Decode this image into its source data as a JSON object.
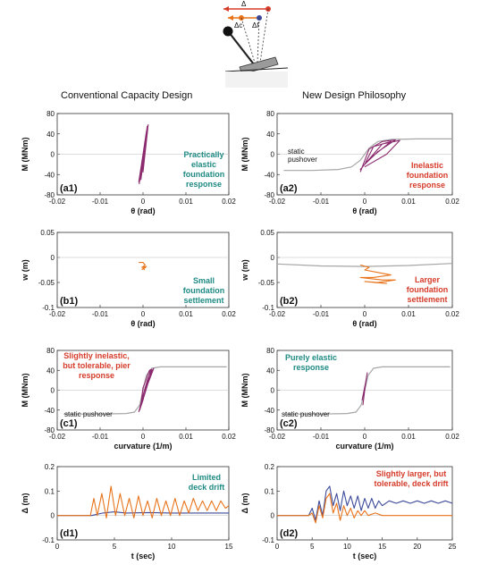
{
  "header": {
    "left_title": "Conventional Capacity Design",
    "right_title": "New Design Philosophy",
    "schematic": {
      "delta": "Δ",
      "delta_c": "Δc",
      "delta_f": "Δf"
    }
  },
  "colors": {
    "purple": "#8b2a6e",
    "orange": "#e8731a",
    "gray": "#a6a6a6",
    "teal": "#1f8a84",
    "red": "#d63b2a",
    "navy": "#3b4a9a"
  },
  "chart_data": [
    {
      "id": "a1",
      "type": "line",
      "panel_label": "(a1)",
      "xlabel": "θ (rad)",
      "ylabel": "M (MNm)",
      "xlim": [
        -0.02,
        0.02
      ],
      "ylim": [
        -80,
        80
      ],
      "xticks": [
        "-0.02",
        "-0.01",
        "0",
        "0.01",
        "0.02"
      ],
      "yticks": [
        "80",
        "40",
        "0",
        "-40",
        "-80"
      ],
      "annotations": [
        {
          "text": "Practically\nelastic\nfoundation\nresponse",
          "color": "teal"
        }
      ],
      "series": [
        {
          "color": "purple",
          "x": [
            -0.001,
            0.001,
            -0.0005,
            0.0012,
            -0.0008,
            0.0008,
            0.0,
            0.0011,
            -0.0009,
            0.0004
          ],
          "y": [
            -55,
            55,
            -50,
            58,
            -45,
            45,
            -35,
            50,
            -58,
            20
          ]
        }
      ]
    },
    {
      "id": "a2",
      "type": "line",
      "panel_label": "(a2)",
      "xlabel": "θ (rad)",
      "ylabel": "M (MNm)",
      "xlim": [
        -0.02,
        0.02
      ],
      "ylim": [
        -80,
        80
      ],
      "xticks": [
        "-0.02",
        "-0.01",
        "0",
        "0.01",
        "0.02"
      ],
      "yticks": [
        "80",
        "40",
        "0",
        "-40",
        "-80"
      ],
      "annotations": [
        {
          "text": "static\npushover",
          "color": "black"
        },
        {
          "text": "Inelastic\nfoundation\nresponse",
          "color": "red"
        }
      ],
      "series": [
        {
          "name": "static pushover",
          "color": "gray",
          "x": [
            -0.0185,
            -0.012,
            -0.006,
            -0.003,
            -0.001,
            0.0,
            0.001,
            0.003,
            0.006,
            0.012,
            0.02
          ],
          "y": [
            -32,
            -32,
            -30,
            -25,
            -12,
            0,
            12,
            25,
            29,
            30,
            30
          ]
        },
        {
          "color": "purple",
          "x": [
            -0.001,
            0.001,
            0.004,
            0.007,
            0.003,
            0.0,
            0.002,
            0.006,
            0.001,
            -0.001,
            0.004,
            0.008,
            0.005,
            0.0
          ],
          "y": [
            -35,
            10,
            25,
            28,
            5,
            -20,
            15,
            25,
            -10,
            -30,
            20,
            27,
            0,
            -25
          ]
        }
      ]
    },
    {
      "id": "b1",
      "type": "line",
      "panel_label": "(b1)",
      "xlabel": "θ (rad)",
      "ylabel": "w (m)",
      "xlim": [
        -0.02,
        0.02
      ],
      "ylim": [
        -0.1,
        0.05
      ],
      "xticks": [
        "-0.02",
        "-0.01",
        "0",
        "0.01",
        "0.02"
      ],
      "yticks": [
        "0.05",
        "0",
        "-0.05",
        "-0.1"
      ],
      "annotations": [
        {
          "text": "Small\nfoundation\nsettlement",
          "color": "teal"
        }
      ],
      "series": [
        {
          "color": "orange",
          "x": [
            -0.001,
            0.0,
            0.0005,
            -0.0003,
            0.0008,
            -0.0002,
            0.0006,
            0.0,
            0.0004
          ],
          "y": [
            -0.01,
            -0.01,
            -0.015,
            -0.02,
            -0.018,
            -0.024,
            -0.02,
            -0.022,
            -0.025
          ]
        }
      ]
    },
    {
      "id": "b2",
      "type": "line",
      "panel_label": "(b2)",
      "xlabel": "θ (rad)",
      "ylabel": "w (m)",
      "xlim": [
        -0.02,
        0.02
      ],
      "ylim": [
        -0.1,
        0.05
      ],
      "xticks": [
        "-0.02",
        "-0.01",
        "0",
        "0.01",
        "0.02"
      ],
      "yticks": [
        "0.05",
        "0",
        "-0.05",
        "-0.1"
      ],
      "annotations": [
        {
          "text": "Larger\nfoundation\nsettlement",
          "color": "red"
        }
      ],
      "series": [
        {
          "color": "gray",
          "x": [
            -0.02,
            -0.01,
            0.0,
            0.01,
            0.02
          ],
          "y": [
            -0.013,
            -0.017,
            -0.018,
            -0.016,
            -0.012
          ]
        },
        {
          "color": "orange",
          "x": [
            -0.001,
            0.001,
            0.0,
            0.003,
            0.006,
            0.002,
            -0.001,
            0.004,
            0.007,
            0.003,
            0.0,
            0.005,
            0.002
          ],
          "y": [
            -0.015,
            -0.02,
            -0.025,
            -0.03,
            -0.035,
            -0.04,
            -0.04,
            -0.045,
            -0.045,
            -0.05,
            -0.048,
            -0.052,
            -0.05
          ]
        }
      ]
    },
    {
      "id": "c1",
      "type": "line",
      "panel_label": "(c1)",
      "xlabel": "curvature (1/m)",
      "ylabel": "M (MNm)",
      "xlim": [
        -0.02,
        0.02
      ],
      "ylim": [
        -80,
        80
      ],
      "xticks": [
        "-0.02",
        "-0.01",
        "0",
        "0.01",
        "0.02"
      ],
      "yticks": [
        "80",
        "40",
        "0",
        "-40",
        "-80"
      ],
      "annotations": [
        {
          "text": "Slightly inelastic,\nbut tolerable, pier\nresponse",
          "color": "red"
        },
        {
          "text": "static pushover",
          "color": "black"
        }
      ],
      "series": [
        {
          "name": "static pushover",
          "color": "gray",
          "x": [
            -0.0185,
            -0.01,
            -0.004,
            -0.002,
            -0.0008,
            0.0,
            0.0008,
            0.002,
            0.004,
            0.01,
            0.0195
          ],
          "y": [
            -48,
            -48,
            -47,
            -44,
            -30,
            0,
            30,
            44,
            47,
            47,
            47
          ]
        },
        {
          "color": "purple",
          "x": [
            -0.001,
            0.0,
            0.001,
            0.002,
            0.0015,
            0.0,
            -0.0005,
            0.001,
            0.0025,
            0.002,
            0.0005,
            -0.0008,
            0.0,
            0.0018
          ],
          "y": [
            -44,
            -10,
            20,
            42,
            40,
            5,
            -30,
            10,
            44,
            38,
            -5,
            -40,
            -20,
            42
          ]
        }
      ]
    },
    {
      "id": "c2",
      "type": "line",
      "panel_label": "(c2)",
      "xlabel": "curvature (1/m)",
      "ylabel": "M (MNm)",
      "xlim": [
        -0.02,
        0.02
      ],
      "ylim": [
        -80,
        80
      ],
      "xticks": [
        "-0.02",
        "-0.01",
        "0",
        "0.01",
        "0.02"
      ],
      "yticks": [
        "80",
        "40",
        "0",
        "-40",
        "-80"
      ],
      "annotations": [
        {
          "text": "Purely elastic\nresponse",
          "color": "teal"
        },
        {
          "text": "static pushover",
          "color": "black"
        }
      ],
      "series": [
        {
          "name": "static pushover",
          "color": "gray",
          "x": [
            -0.0185,
            -0.01,
            -0.004,
            -0.002,
            -0.0008,
            0.0,
            0.0008,
            0.002,
            0.004,
            0.01,
            0.0195
          ],
          "y": [
            -48,
            -48,
            -47,
            -44,
            -30,
            0,
            30,
            44,
            47,
            47,
            47
          ]
        },
        {
          "color": "purple",
          "x": [
            -0.0004,
            0.0,
            0.0004,
            0.0006,
            0.0,
            -0.0006,
            0.0003
          ],
          "y": [
            -30,
            0,
            25,
            35,
            5,
            -20,
            20
          ]
        }
      ]
    },
    {
      "id": "d1",
      "type": "line",
      "panel_label": "(d1)",
      "xlabel": "t (sec)",
      "ylabel": "Δ (m)",
      "xlim": [
        0,
        15
      ],
      "ylim": [
        -0.1,
        0.2
      ],
      "xticks": [
        "0",
        "5",
        "10",
        "15"
      ],
      "yticks": [
        "0.2",
        "0.1",
        "0",
        "-0.1"
      ],
      "annotations": [
        {
          "text": "Limited\ndeck drift",
          "color": "teal"
        }
      ],
      "series": [
        {
          "color": "navy",
          "x": [
            0,
            3,
            4,
            5,
            6,
            8,
            10,
            12,
            15
          ],
          "y": [
            0,
            0,
            0.01,
            0.015,
            0.01,
            0.012,
            0.01,
            0.01,
            0.01
          ]
        },
        {
          "color": "orange",
          "x": [
            0,
            2.9,
            3.2,
            3.5,
            3.9,
            4.3,
            4.7,
            5.1,
            5.5,
            5.9,
            6.3,
            6.7,
            7.1,
            7.5,
            7.9,
            8.3,
            8.7,
            9.1,
            9.5,
            9.9,
            10.3,
            10.7,
            11.1,
            11.5,
            11.9,
            12.3,
            12.7,
            13.1,
            13.5,
            13.9,
            14.3,
            14.7,
            15.0
          ],
          "y": [
            0,
            0,
            0.07,
            0.0,
            0.09,
            -0.01,
            0.12,
            0.0,
            0.09,
            0.0,
            0.07,
            -0.01,
            0.08,
            0.0,
            0.06,
            -0.01,
            0.07,
            0.0,
            0.06,
            0.0,
            0.07,
            0.0,
            0.06,
            0.01,
            0.07,
            0.02,
            0.06,
            0.02,
            0.06,
            0.02,
            0.06,
            0.03,
            0.04
          ]
        }
      ]
    },
    {
      "id": "d2",
      "type": "line",
      "panel_label": "(d2)",
      "xlabel": "t (sec)",
      "ylabel": "Δ (m)",
      "xlim": [
        0,
        25
      ],
      "ylim": [
        -0.1,
        0.2
      ],
      "xticks": [
        "0",
        "5",
        "10",
        "15",
        "20",
        "25"
      ],
      "yticks": [
        "0.2",
        "0.1",
        "0",
        "-0.1"
      ],
      "annotations": [
        {
          "text": "Slightly larger, but\ntolerable, deck drift",
          "color": "red"
        }
      ],
      "series": [
        {
          "color": "navy",
          "x": [
            0,
            4.5,
            5.0,
            5.5,
            6.0,
            6.5,
            7.0,
            7.5,
            8.0,
            8.5,
            9.0,
            9.5,
            10.0,
            10.5,
            11.0,
            11.5,
            12.0,
            12.5,
            13.0,
            13.5,
            14.0,
            14.5,
            15.0,
            16.0,
            17.0,
            18.0,
            19.0,
            20.0,
            21.0,
            22.0,
            23.0,
            24.0,
            25.0
          ],
          "y": [
            0,
            0,
            0.03,
            -0.02,
            0.06,
            0.0,
            0.1,
            0.12,
            0.04,
            0.09,
            0.02,
            0.1,
            0.04,
            0.08,
            0.03,
            0.08,
            0.02,
            0.07,
            0.03,
            0.07,
            0.03,
            0.06,
            0.04,
            0.06,
            0.05,
            0.06,
            0.05,
            0.06,
            0.05,
            0.06,
            0.05,
            0.06,
            0.05
          ]
        },
        {
          "color": "orange",
          "x": [
            0,
            4.5,
            5.0,
            5.5,
            6.0,
            6.5,
            7.0,
            7.5,
            8.0,
            8.5,
            9.0,
            9.5,
            10.0,
            10.5,
            11.0,
            11.5,
            12.0,
            12.5,
            13.0,
            14.0,
            15.0,
            16.0,
            18.0,
            20.0,
            22.0,
            25.0
          ],
          "y": [
            0,
            0,
            0.01,
            -0.03,
            0.04,
            -0.01,
            0.07,
            0.09,
            0.01,
            0.05,
            -0.02,
            0.04,
            0.0,
            0.03,
            -0.01,
            0.02,
            0.0,
            0.02,
            0.0,
            0.01,
            0.0,
            0.0,
            0.0,
            0.0,
            0.0,
            0.0
          ]
        }
      ]
    }
  ]
}
